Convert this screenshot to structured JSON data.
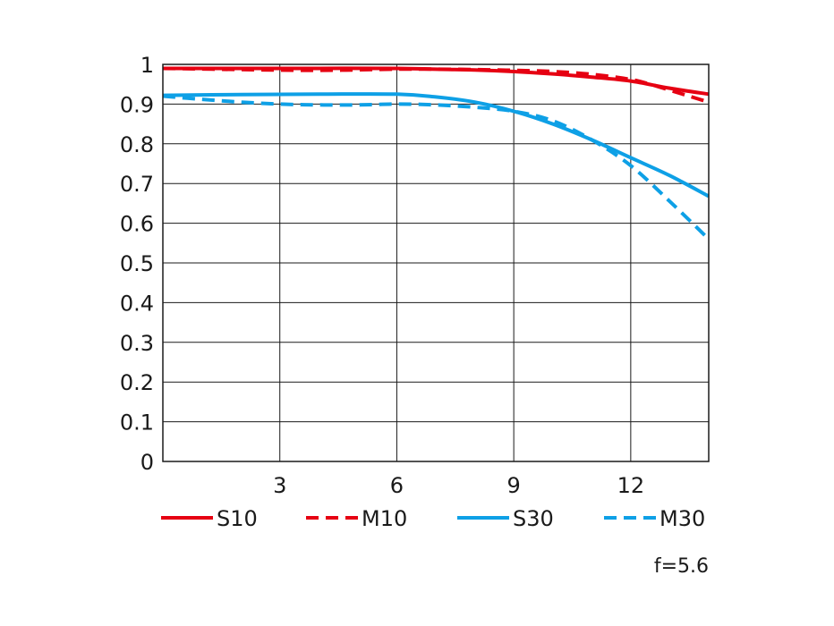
{
  "chart_data": {
    "type": "line",
    "xlim": [
      0,
      14
    ],
    "ylim": [
      0,
      1
    ],
    "x_ticks": [
      3,
      6,
      9,
      12
    ],
    "x_tick_labels": [
      "3",
      "6",
      "9",
      "12"
    ],
    "y_ticks": [
      0,
      0.1,
      0.2,
      0.3,
      0.4,
      0.5,
      0.6,
      0.7,
      0.8,
      0.9,
      1
    ],
    "y_tick_labels": [
      "0",
      "0.1",
      "0.2",
      "0.3",
      "0.4",
      "0.5",
      "0.6",
      "0.7",
      "0.8",
      "0.9",
      "1"
    ],
    "grid": true,
    "legend_position": "bottom",
    "annotation": "f=5.6",
    "series": [
      {
        "name": "S10",
        "color": "#e60012",
        "dash": "solid",
        "x": [
          0,
          2,
          4,
          6,
          7,
          8,
          9,
          10,
          11,
          12,
          13,
          14
        ],
        "y": [
          0.99,
          0.99,
          0.99,
          0.99,
          0.988,
          0.986,
          0.982,
          0.976,
          0.968,
          0.958,
          0.94,
          0.925
        ]
      },
      {
        "name": "M10",
        "color": "#e60012",
        "dash": "dashed",
        "x": [
          0,
          2,
          4,
          6,
          7,
          8,
          9,
          10,
          11,
          12,
          12.5,
          13,
          13.5,
          14
        ],
        "y": [
          0.99,
          0.987,
          0.985,
          0.988,
          0.988,
          0.987,
          0.985,
          0.982,
          0.975,
          0.962,
          0.95,
          0.935,
          0.92,
          0.905
        ]
      },
      {
        "name": "S30",
        "color": "#0ea0e6",
        "dash": "solid",
        "x": [
          0,
          2,
          4,
          6,
          7,
          8,
          9,
          10,
          11,
          12,
          13,
          14
        ],
        "y": [
          0.922,
          0.924,
          0.925,
          0.925,
          0.918,
          0.905,
          0.882,
          0.85,
          0.81,
          0.765,
          0.72,
          0.668
        ]
      },
      {
        "name": "M30",
        "color": "#0ea0e6",
        "dash": "dashed",
        "x": [
          0,
          1,
          2,
          3,
          4,
          5,
          6,
          7,
          8,
          9,
          10,
          11,
          12,
          13,
          14
        ],
        "y": [
          0.92,
          0.912,
          0.905,
          0.9,
          0.898,
          0.898,
          0.9,
          0.898,
          0.892,
          0.882,
          0.858,
          0.81,
          0.745,
          0.655,
          0.56
        ]
      }
    ]
  }
}
